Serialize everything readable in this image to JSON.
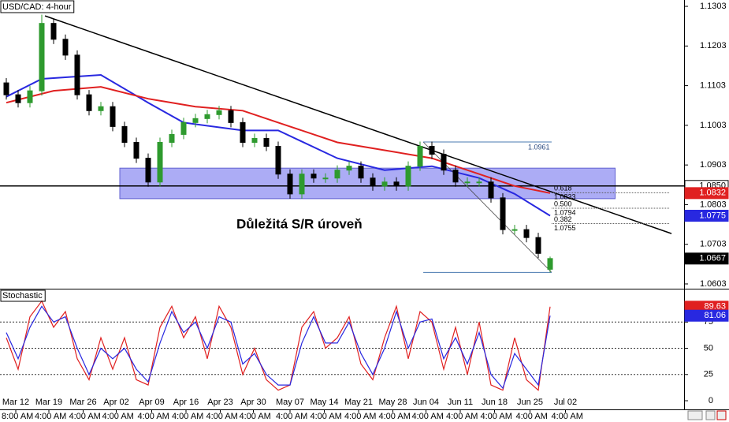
{
  "chart_data": [
    {
      "type": "candlestick",
      "title": "USD/CAD: 4-hour",
      "x": [
        0,
        1,
        2,
        3,
        4,
        5,
        6,
        7,
        8,
        9,
        10,
        11,
        12,
        13,
        14,
        15,
        16,
        17,
        18,
        19,
        20,
        21,
        22,
        23,
        24,
        25,
        26,
        27,
        28,
        29,
        30,
        31,
        32,
        33,
        34,
        35,
        36,
        37,
        38,
        39,
        40,
        41,
        42,
        43,
        44,
        45,
        46
      ],
      "open": [
        1.111,
        1.108,
        1.106,
        1.109,
        1.126,
        1.122,
        1.118,
        1.108,
        1.104,
        1.105,
        1.1,
        1.096,
        1.092,
        1.086,
        1.096,
        1.098,
        1.101,
        1.102,
        1.103,
        1.104,
        1.101,
        1.096,
        1.097,
        1.095,
        1.088,
        1.083,
        1.088,
        1.087,
        1.087,
        1.089,
        1.09,
        1.087,
        1.085,
        1.086,
        1.085,
        1.09,
        1.095,
        1.093,
        1.089,
        1.086,
        1.086,
        1.086,
        1.082,
        1.074,
        1.074,
        1.072,
        1.064
      ],
      "high": [
        1.1122,
        1.1092,
        1.1102,
        1.1282,
        1.1272,
        1.1232,
        1.1192,
        1.1092,
        1.1062,
        1.1062,
        1.1012,
        1.0972,
        1.0932,
        1.0972,
        1.0992,
        1.1022,
        1.1032,
        1.1042,
        1.1052,
        1.1052,
        1.1022,
        1.0982,
        1.0982,
        1.0962,
        1.0892,
        1.0892,
        1.0892,
        1.0882,
        1.0902,
        1.0912,
        1.0912,
        1.0882,
        1.0872,
        1.0872,
        1.0912,
        1.0962,
        1.0962,
        1.0942,
        1.0902,
        1.0872,
        1.0872,
        1.0872,
        1.0832,
        1.0752,
        1.0752,
        1.0732,
        1.0672
      ],
      "low": [
        1.1068,
        1.1048,
        1.1048,
        1.1078,
        1.1208,
        1.1168,
        1.1068,
        1.1028,
        1.1028,
        1.0988,
        1.0948,
        1.0908,
        1.0848,
        1.0848,
        1.0948,
        1.0968,
        1.0998,
        1.1008,
        1.1018,
        1.0998,
        1.0948,
        1.0948,
        1.0938,
        1.0868,
        1.0818,
        1.0818,
        1.0858,
        1.0858,
        1.0858,
        1.0878,
        1.0858,
        1.0838,
        1.0838,
        1.0838,
        1.0838,
        1.0888,
        1.0918,
        1.0878,
        1.0848,
        1.0848,
        1.0848,
        1.0808,
        1.0728,
        1.0728,
        1.0708,
        1.0668,
        1.0632
      ],
      "close": [
        1.108,
        1.106,
        1.109,
        1.126,
        1.122,
        1.118,
        1.108,
        1.104,
        1.105,
        1.1,
        1.096,
        1.092,
        1.086,
        1.096,
        1.098,
        1.101,
        1.102,
        1.103,
        1.104,
        1.101,
        1.096,
        1.097,
        1.095,
        1.088,
        1.083,
        1.088,
        1.087,
        1.087,
        1.089,
        1.09,
        1.087,
        1.085,
        1.086,
        1.085,
        1.09,
        1.095,
        1.093,
        1.089,
        1.086,
        1.086,
        1.086,
        1.082,
        1.074,
        1.074,
        1.072,
        1.068,
        1.0667
      ],
      "up_color": "#2e9a2e",
      "down_color": "#000000",
      "moving_averages": [
        {
          "color": "#2828e0",
          "x": [
            0,
            3,
            8,
            12,
            15,
            20,
            23,
            28,
            32,
            36,
            40,
            43,
            46
          ],
          "values": [
            1.1075,
            1.112,
            1.113,
            1.106,
            1.101,
            1.099,
            1.099,
            1.092,
            1.089,
            1.09,
            1.087,
            1.083,
            1.0775
          ]
        },
        {
          "color": "#e02020",
          "x": [
            0,
            4,
            8,
            12,
            16,
            20,
            24,
            28,
            32,
            36,
            40,
            43,
            46
          ],
          "values": [
            1.106,
            1.109,
            1.11,
            1.107,
            1.105,
            1.104,
            1.1,
            1.096,
            1.094,
            1.092,
            1.088,
            1.085,
            1.0832
          ]
        }
      ],
      "hline": {
        "value": 1.085,
        "label": "1.0850"
      },
      "trendline": {
        "x": [
          3.27,
          56.27
        ],
        "y": [
          1.1279,
          1.073
        ]
      },
      "zone": {
        "x": [
          9.6,
          51.5
        ],
        "y": [
          1.0818,
          1.0895
        ],
        "color": "#7f7ff0"
      },
      "annotation": "Důležitá S/R úroveň",
      "fibonacci": {
        "x": [
          35.27,
          46.13
        ],
        "high": 1.0961,
        "low": 1.0632,
        "levels": [
          {
            "ratio": 0.618,
            "price": 1.0833
          },
          {
            "ratio": {
              "value": 0.5,
              "label": "0.500"
            },
            "price": 1.0794
          },
          {
            "ratio": 0.382,
            "price": 1.0755
          }
        ]
      },
      "xlim": [
        -0.5333,
        57.3333
      ],
      "ylim": [
        1.0593,
        1.1319
      ],
      "yticks": [
        1.1303,
        1.1203,
        1.1103,
        1.1003,
        1.0903,
        1.0803,
        1.0703,
        1.0603
      ]
    },
    {
      "type": "line",
      "title": "Stochastic",
      "x": [
        0,
        1,
        2,
        3,
        4,
        5,
        6,
        7,
        8,
        9,
        10,
        11,
        12,
        13,
        14,
        15,
        16,
        17,
        18,
        19,
        20,
        21,
        22,
        23,
        24,
        25,
        26,
        27,
        28,
        29,
        30,
        31,
        32,
        33,
        34,
        35,
        36,
        37,
        38,
        39,
        40,
        41,
        42,
        43,
        44,
        45,
        46
      ],
      "series": [
        {
          "color": "#e02020",
          "values": [
            60,
            30,
            80,
            95,
            70,
            85,
            40,
            20,
            60,
            30,
            60,
            20,
            15,
            70,
            90,
            60,
            80,
            40,
            90,
            70,
            25,
            50,
            20,
            10,
            15,
            70,
            85,
            50,
            60,
            80,
            35,
            20,
            60,
            90,
            40,
            85,
            75,
            30,
            70,
            25,
            75,
            15,
            10,
            60,
            20,
            10,
            89.63
          ]
        },
        {
          "color": "#2828e0",
          "values": [
            65,
            40,
            70,
            90,
            75,
            80,
            50,
            25,
            50,
            40,
            50,
            30,
            18,
            55,
            85,
            65,
            75,
            50,
            80,
            75,
            35,
            45,
            25,
            15,
            15,
            55,
            80,
            55,
            55,
            75,
            45,
            25,
            50,
            85,
            50,
            75,
            78,
            40,
            60,
            35,
            65,
            25,
            12,
            45,
            30,
            15,
            81.06
          ]
        }
      ],
      "xlim": [
        -0.5333,
        57.3333
      ],
      "ylim": [
        -7.5,
        105.3
      ],
      "yticks": [
        0,
        25,
        50,
        75
      ],
      "xticks": [
        {
          "value": 0.8,
          "label": "Mar 12"
        },
        {
          "value": 3.6,
          "label": "Mar 19"
        },
        {
          "value": 6.5,
          "label": "Mar 26"
        },
        {
          "value": 9.3,
          "label": "Apr 02"
        },
        {
          "value": 12.3,
          "label": "Apr 09"
        },
        {
          "value": 15.2,
          "label": "Apr 16"
        },
        {
          "value": 18.1,
          "label": "Apr 23"
        },
        {
          "value": 20.9,
          "label": "Apr 30"
        },
        {
          "value": 24,
          "label": "May 07"
        },
        {
          "value": 26.9,
          "label": "May 14"
        },
        {
          "value": 29.8,
          "label": "May 21"
        },
        {
          "value": 32.7,
          "label": "May 28"
        },
        {
          "value": 35.5,
          "label": "Jun 04"
        },
        {
          "value": 38.4,
          "label": "Jun 11"
        },
        {
          "value": 41.3,
          "label": "Jun 18"
        },
        {
          "value": 44.3,
          "label": "Jun 25"
        },
        {
          "value": 47.3,
          "label": "Jul 02"
        }
      ],
      "xtick_times": [
        "8:00 AM",
        "4:00 AM",
        "4:00 AM",
        "4:00 AM",
        "4:00 AM",
        "4:00 AM",
        "4:00 AM",
        "4:00 AM",
        "4:00 AM",
        "4:00 AM",
        "4:00 AM",
        "4:00 AM",
        "4:00 AM",
        "4:00 AM",
        "4:00 AM",
        "4:00 AM",
        "4:00 AM"
      ]
    }
  ]
}
